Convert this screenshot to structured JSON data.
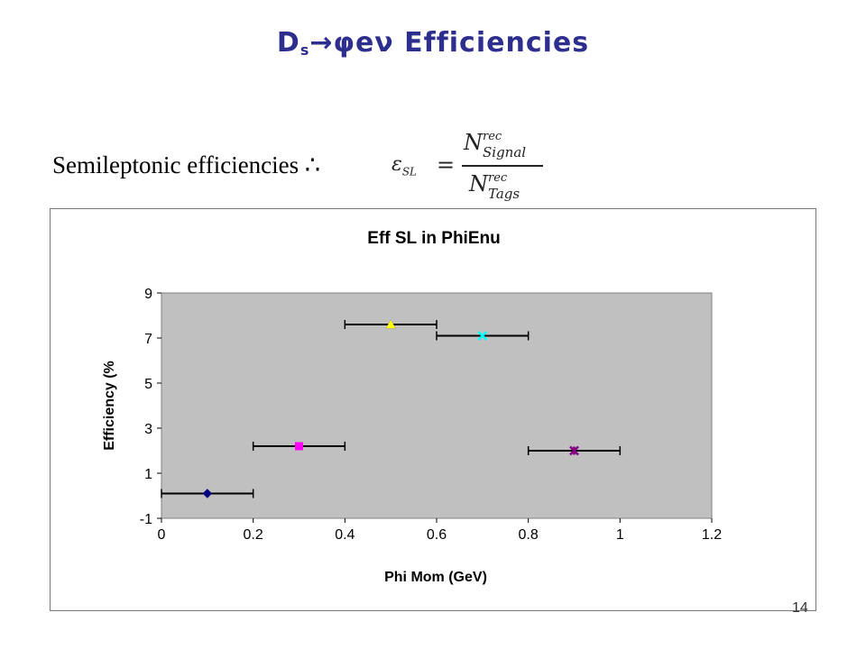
{
  "slide": {
    "title_main": "D",
    "title_sub": "s",
    "title_rest": "→φeν Efficiencies",
    "subtitle": "Semileptonic efficiencies ∴",
    "formula": {
      "lhs": "ε",
      "lhs_sub": "SL",
      "eq": "=",
      "num_symbol": "N",
      "num_sup": "rec",
      "num_sub": "Signal",
      "den_symbol": "N",
      "den_sup": "rec",
      "den_sub": "Tags"
    },
    "page_number": "14"
  },
  "chart_data": {
    "type": "scatter",
    "title": "Eff SL in PhiEnu",
    "xlabel": "Phi Mom (GeV)",
    "ylabel": "Efficiency (%",
    "xlim": [
      0,
      1.2
    ],
    "ylim": [
      -1,
      9
    ],
    "xticks": [
      "0",
      "0.2",
      "0.4",
      "0.6",
      "0.8",
      "1",
      "1.2"
    ],
    "yticks": [
      "-1",
      "1",
      "3",
      "5",
      "7",
      "9"
    ],
    "grid": false,
    "plot_background": "#c0c0c0",
    "series": [
      {
        "x": 0.1,
        "y": 0.1,
        "xerr": 0.1,
        "marker": "diamond",
        "color": "#000080"
      },
      {
        "x": 0.3,
        "y": 2.2,
        "xerr": 0.1,
        "marker": "square",
        "color": "#ff00ff"
      },
      {
        "x": 0.5,
        "y": 7.6,
        "xerr": 0.1,
        "marker": "triangle",
        "color": "#ffff00"
      },
      {
        "x": 0.7,
        "y": 7.1,
        "xerr": 0.1,
        "marker": "x",
        "color": "#00ffff"
      },
      {
        "x": 0.9,
        "y": 2.0,
        "xerr": 0.1,
        "marker": "star",
        "color": "#800080"
      }
    ]
  }
}
